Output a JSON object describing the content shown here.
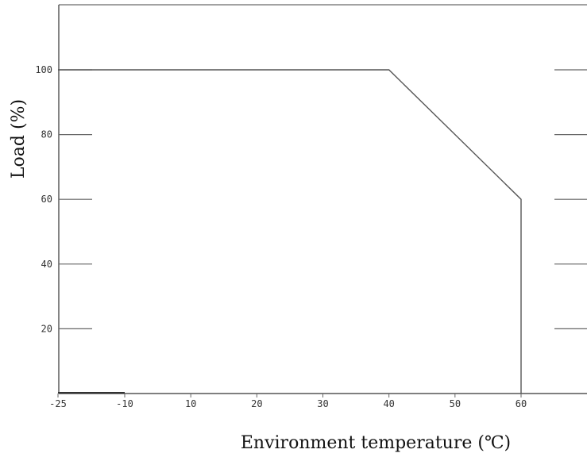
{
  "chart_data": {
    "type": "line",
    "title": "",
    "xlabel": "Environment temperature (℃)",
    "ylabel": "Load (%)",
    "xlim": [
      -25,
      70
    ],
    "ylim": [
      0,
      120
    ],
    "x_ticks": [
      {
        "value": -25,
        "label": "-25"
      },
      {
        "value": -10,
        "label": "-10"
      },
      {
        "value": 10,
        "label": "10"
      },
      {
        "value": 20,
        "label": "20"
      },
      {
        "value": 30,
        "label": "30"
      },
      {
        "value": 40,
        "label": "40"
      },
      {
        "value": 50,
        "label": "50"
      },
      {
        "value": 60,
        "label": "60"
      }
    ],
    "y_ticks": [
      {
        "value": 20,
        "label": "20"
      },
      {
        "value": 40,
        "label": "40"
      },
      {
        "value": 60,
        "label": "60"
      },
      {
        "value": 80,
        "label": "80"
      },
      {
        "value": 100,
        "label": "100"
      }
    ],
    "series": [
      {
        "points": [
          [
            -25,
            100
          ],
          [
            40,
            100
          ],
          [
            60,
            60
          ],
          [
            60,
            0
          ]
        ],
        "color": "#555555"
      }
    ],
    "grid": false,
    "legend": "none",
    "colors": {
      "axis": "#333333",
      "tick": "#555555",
      "line": "#555555"
    }
  }
}
